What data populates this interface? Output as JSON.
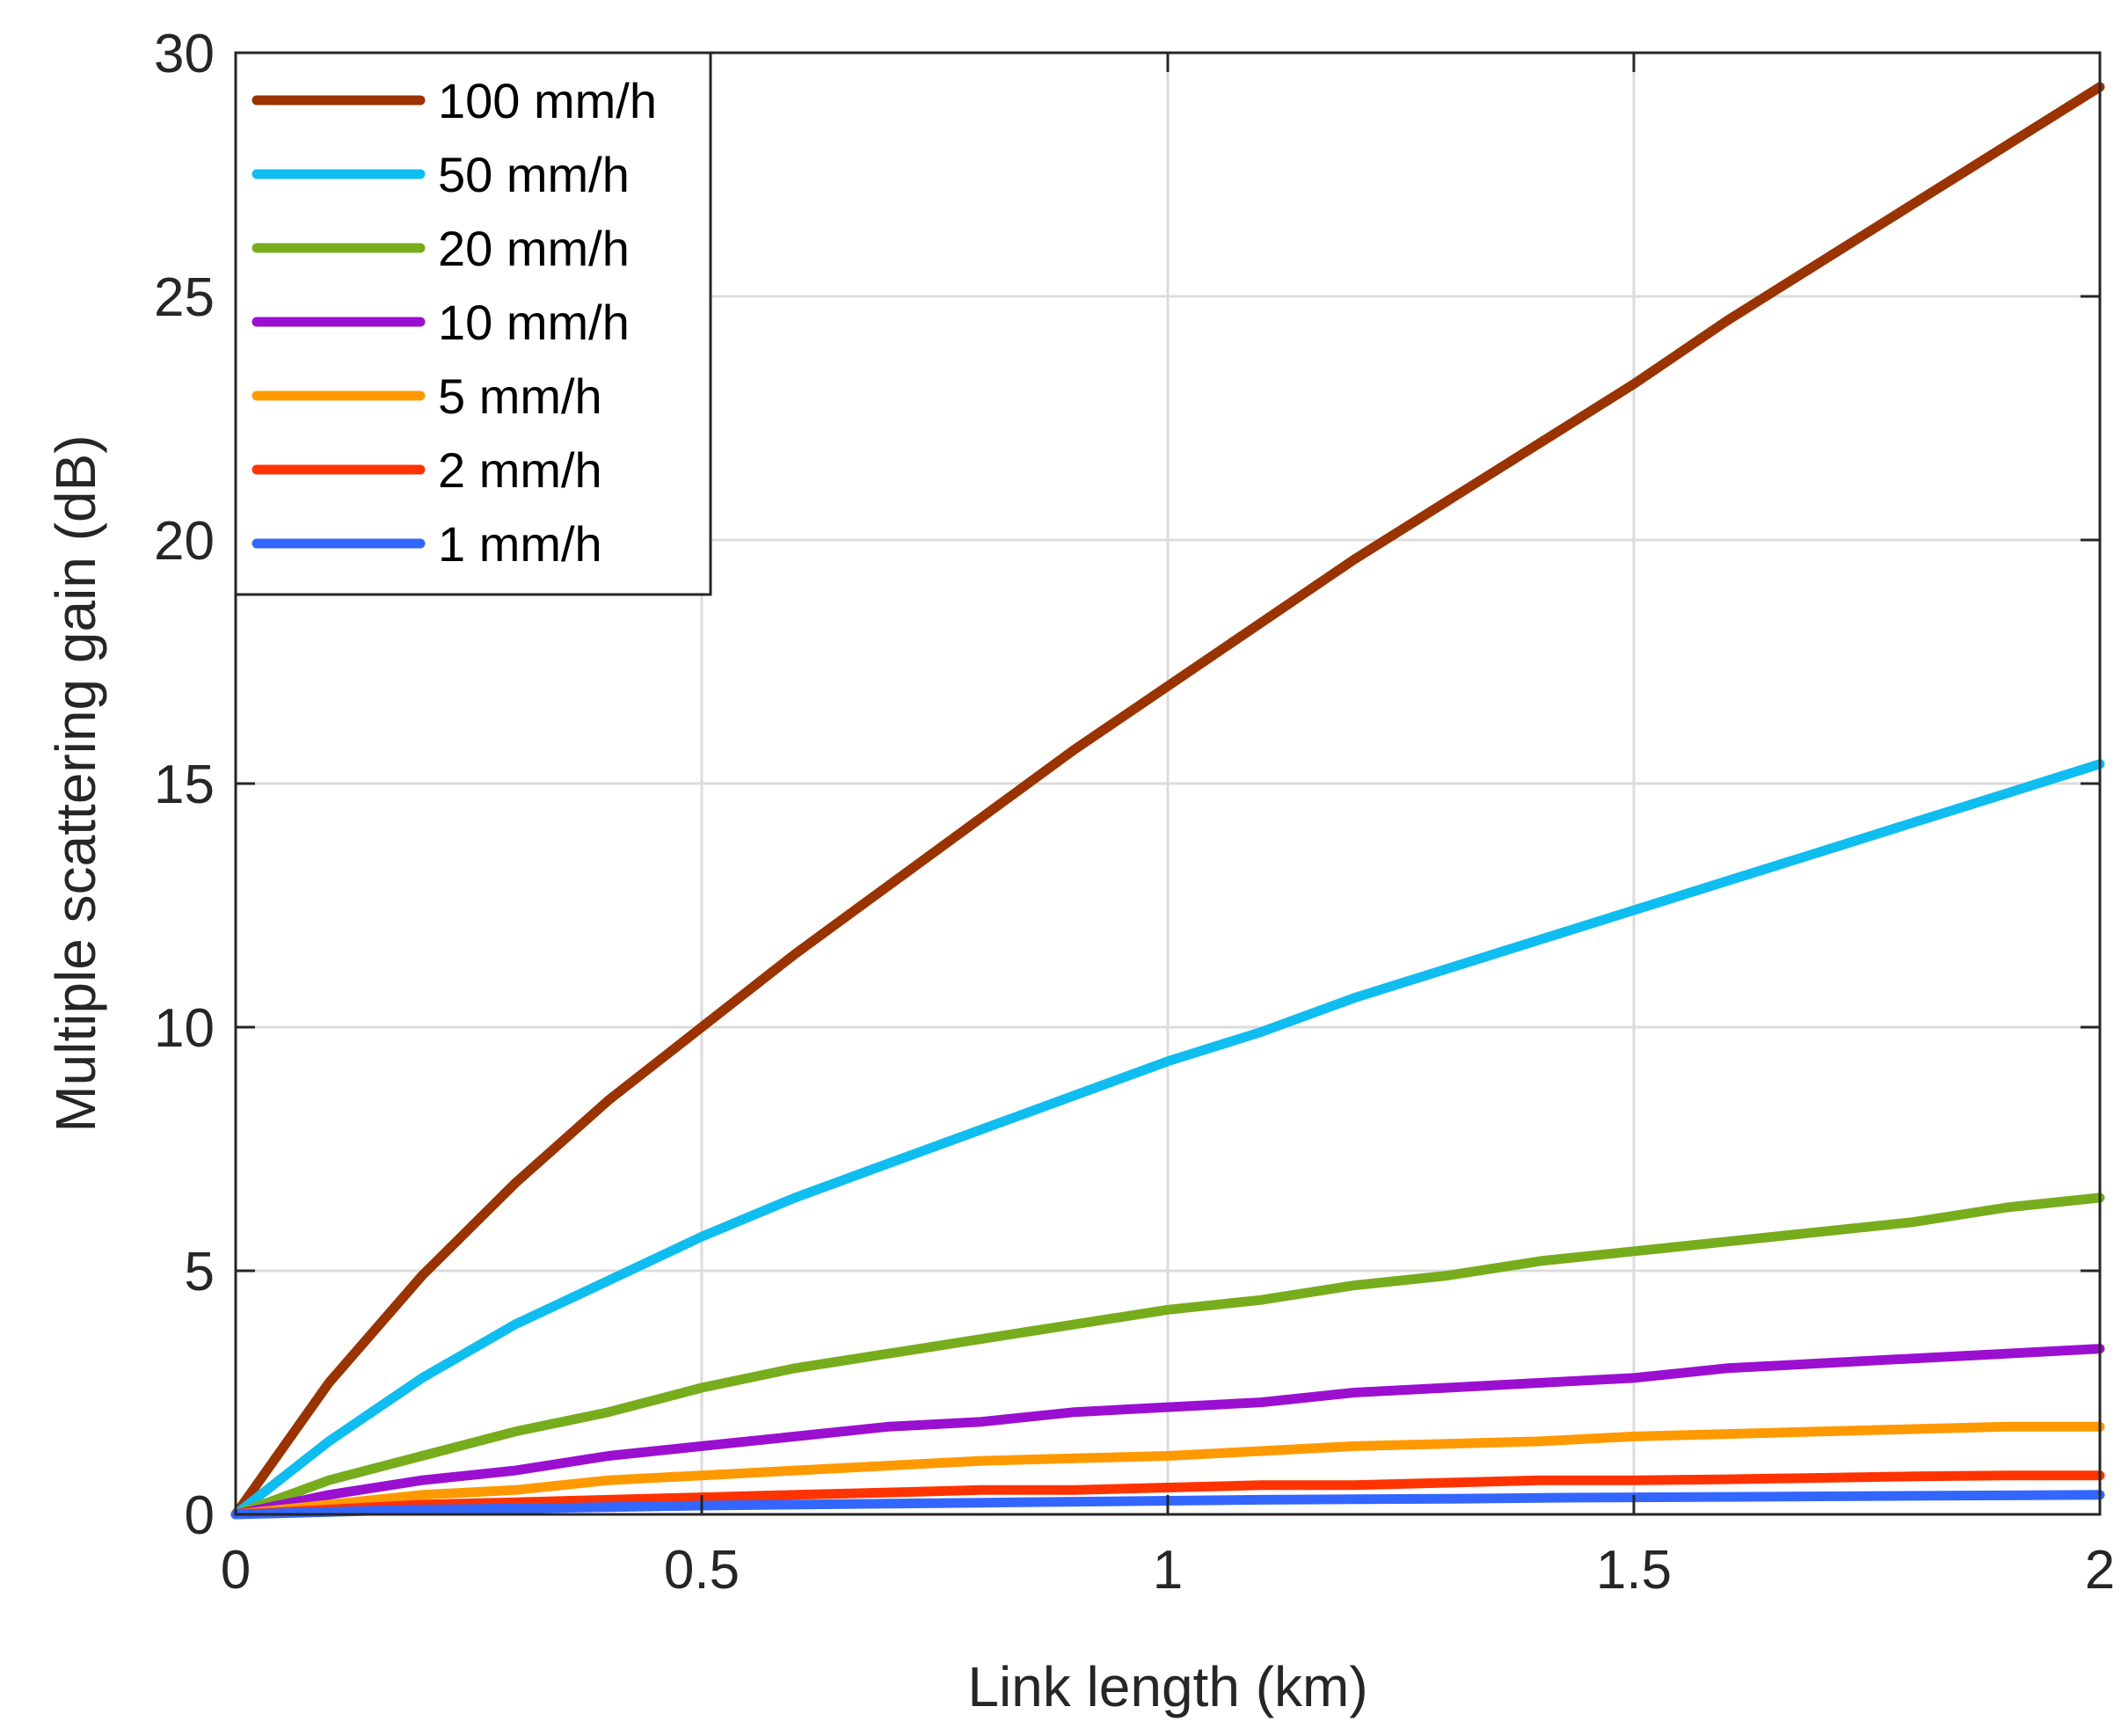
{
  "chart_data": {
    "type": "line",
    "title": "",
    "xlabel": "Link length (km)",
    "ylabel": "Multiple scattering gain (dB)",
    "xlim": [
      0,
      2
    ],
    "ylim": [
      0,
      30
    ],
    "grid": true,
    "legend_position": "top-left",
    "x_ticks": [
      0,
      0.5,
      1,
      1.5,
      2
    ],
    "x_tick_labels": [
      "0",
      "0.5",
      "1",
      "1.5",
      "2"
    ],
    "y_ticks": [
      0,
      5,
      10,
      15,
      20,
      25,
      30
    ],
    "y_tick_labels": [
      "0",
      "5",
      "10",
      "15",
      "20",
      "25",
      "30"
    ],
    "x": [
      0,
      0.1,
      0.2,
      0.3,
      0.4,
      0.5,
      0.6,
      0.7,
      0.8,
      0.9,
      1.0,
      1.1,
      1.2,
      1.3,
      1.4,
      1.5,
      1.6,
      1.7,
      1.8,
      1.9,
      2.0
    ],
    "series": [
      {
        "name": "100 mm/h",
        "color": "#993300",
        "values": [
          0,
          2.7,
          4.9,
          6.8,
          8.5,
          10.0,
          11.5,
          12.9,
          14.3,
          15.7,
          17.0,
          18.3,
          19.6,
          20.8,
          22.0,
          23.2,
          24.5,
          25.7,
          26.9,
          28.1,
          29.3
        ]
      },
      {
        "name": "50 mm/h",
        "color": "#0fbdf0",
        "values": [
          0,
          1.5,
          2.8,
          3.9,
          4.8,
          5.7,
          6.5,
          7.2,
          7.9,
          8.6,
          9.3,
          9.9,
          10.6,
          11.2,
          11.8,
          12.4,
          13.0,
          13.6,
          14.2,
          14.8,
          15.4
        ]
      },
      {
        "name": "20 mm/h",
        "color": "#77ac1c",
        "values": [
          0,
          0.7,
          1.2,
          1.7,
          2.1,
          2.6,
          3.0,
          3.3,
          3.6,
          3.9,
          4.2,
          4.4,
          4.7,
          4.9,
          5.2,
          5.4,
          5.6,
          5.8,
          6.0,
          6.3,
          6.5
        ]
      },
      {
        "name": "10 mm/h",
        "color": "#9b0fd1",
        "values": [
          0,
          0.4,
          0.7,
          0.9,
          1.2,
          1.4,
          1.6,
          1.8,
          1.9,
          2.1,
          2.2,
          2.3,
          2.5,
          2.6,
          2.7,
          2.8,
          3.0,
          3.1,
          3.2,
          3.3,
          3.4
        ]
      },
      {
        "name": "5 mm/h",
        "color": "#ff9900",
        "values": [
          0,
          0.2,
          0.4,
          0.5,
          0.7,
          0.8,
          0.9,
          1.0,
          1.1,
          1.15,
          1.2,
          1.3,
          1.4,
          1.45,
          1.5,
          1.6,
          1.65,
          1.7,
          1.75,
          1.8,
          1.8
        ]
      },
      {
        "name": "2 mm/h",
        "color": "#ff3300",
        "values": [
          0,
          0.1,
          0.2,
          0.25,
          0.3,
          0.35,
          0.4,
          0.45,
          0.5,
          0.5,
          0.55,
          0.6,
          0.6,
          0.65,
          0.7,
          0.7,
          0.72,
          0.75,
          0.78,
          0.8,
          0.8
        ]
      },
      {
        "name": "1 mm/h",
        "color": "#3366ff",
        "values": [
          0,
          0.05,
          0.1,
          0.12,
          0.15,
          0.18,
          0.2,
          0.22,
          0.24,
          0.26,
          0.28,
          0.3,
          0.31,
          0.32,
          0.34,
          0.35,
          0.36,
          0.37,
          0.38,
          0.39,
          0.4
        ]
      }
    ]
  }
}
